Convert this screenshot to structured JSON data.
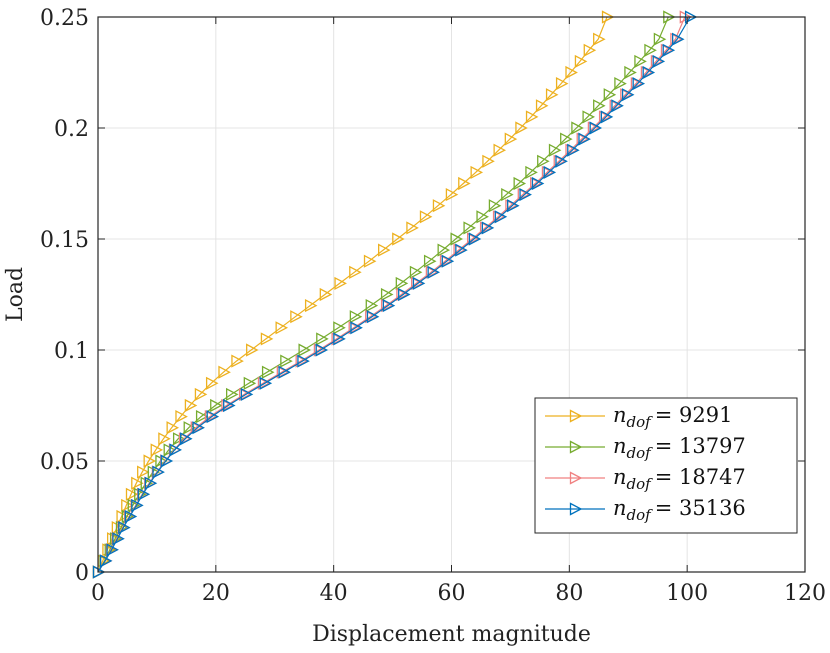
{
  "chart_data": {
    "type": "line",
    "title": "",
    "xlabel": "Displacement magnitude",
    "ylabel": "Load",
    "xlim": [
      0,
      120
    ],
    "ylim": [
      0,
      0.25
    ],
    "xticks": [
      0,
      20,
      40,
      60,
      80,
      100,
      120
    ],
    "yticks": [
      0,
      0.05,
      0.1,
      0.15,
      0.2,
      0.25
    ],
    "xtick_labels": [
      "0",
      "20",
      "40",
      "60",
      "80",
      "100",
      "120"
    ],
    "ytick_labels": [
      "0",
      "0.05",
      "0.1",
      "0.15",
      "0.2",
      "0.25"
    ],
    "grid": true,
    "legend_position": "bottom-right",
    "marker": "right-triangle",
    "series": [
      {
        "name": "n_dof = 9291",
        "legend_var": "n",
        "legend_sub": "dof",
        "legend_value": "= 9291",
        "color": "#EDB120",
        "x": [
          0,
          0.8,
          1.6,
          2.4,
          3.2,
          4.0,
          4.8,
          5.6,
          6.5,
          7.5,
          8.6,
          9.8,
          11.1,
          12.5,
          14.0,
          15.6,
          17.3,
          19.2,
          21.3,
          23.5,
          26.0,
          28.5,
          31.0,
          33.5,
          36.0,
          38.5,
          41.0,
          43.5,
          46.0,
          48.4,
          50.8,
          53.2,
          55.5,
          57.7,
          59.9,
          62.0,
          64.1,
          66.1,
          68.0,
          69.9,
          71.7,
          73.5,
          75.2,
          76.9,
          78.6,
          80.2,
          81.8,
          83.3,
          84.9,
          86.4
        ],
        "y": [
          0,
          0.005,
          0.01,
          0.015,
          0.02,
          0.025,
          0.03,
          0.035,
          0.04,
          0.045,
          0.05,
          0.055,
          0.06,
          0.065,
          0.07,
          0.075,
          0.08,
          0.085,
          0.09,
          0.095,
          0.1,
          0.105,
          0.11,
          0.115,
          0.12,
          0.125,
          0.13,
          0.135,
          0.14,
          0.145,
          0.15,
          0.155,
          0.16,
          0.165,
          0.17,
          0.175,
          0.18,
          0.185,
          0.19,
          0.195,
          0.2,
          0.205,
          0.21,
          0.215,
          0.22,
          0.225,
          0.23,
          0.235,
          0.24,
          0.25
        ]
      },
      {
        "name": "n_dof = 13797",
        "legend_var": "n",
        "legend_sub": "dof",
        "legend_value": "= 13797",
        "color": "#77AC30",
        "x": [
          0,
          1.1,
          2.0,
          2.9,
          3.9,
          4.9,
          5.9,
          7.0,
          8.1,
          9.3,
          10.6,
          12.0,
          13.6,
          15.4,
          17.5,
          19.9,
          22.6,
          25.6,
          28.7,
          31.8,
          34.9,
          37.9,
          40.8,
          43.6,
          46.3,
          48.9,
          51.4,
          53.8,
          56.2,
          58.5,
          60.7,
          62.9,
          65.1,
          67.2,
          69.3,
          71.4,
          73.4,
          75.4,
          77.4,
          79.3,
          81.2,
          83.1,
          84.9,
          86.7,
          88.5,
          90.2,
          91.9,
          93.6,
          95.2,
          96.8
        ],
        "y": [
          0,
          0.005,
          0.01,
          0.015,
          0.02,
          0.025,
          0.03,
          0.035,
          0.04,
          0.045,
          0.05,
          0.055,
          0.06,
          0.065,
          0.07,
          0.075,
          0.08,
          0.085,
          0.09,
          0.095,
          0.1,
          0.105,
          0.11,
          0.115,
          0.12,
          0.125,
          0.13,
          0.135,
          0.14,
          0.145,
          0.15,
          0.155,
          0.16,
          0.165,
          0.17,
          0.175,
          0.18,
          0.185,
          0.19,
          0.195,
          0.2,
          0.205,
          0.21,
          0.215,
          0.22,
          0.225,
          0.23,
          0.235,
          0.24,
          0.25
        ]
      },
      {
        "name": "n_dof = 18747",
        "legend_var": "n",
        "legend_sub": "dof",
        "legend_value": "= 18747",
        "color": "#F08080",
        "x": [
          0,
          1.2,
          2.2,
          3.2,
          4.2,
          5.3,
          6.4,
          7.5,
          8.7,
          10.0,
          11.4,
          12.9,
          14.6,
          16.6,
          19.0,
          21.8,
          24.8,
          28.0,
          31.2,
          34.4,
          37.5,
          40.5,
          43.4,
          46.2,
          48.9,
          51.5,
          54.0,
          56.5,
          58.9,
          61.2,
          63.5,
          65.7,
          67.9,
          70.0,
          72.1,
          74.2,
          76.2,
          78.2,
          80.2,
          82.1,
          84.0,
          85.9,
          87.7,
          89.5,
          91.3,
          93.0,
          94.7,
          96.4,
          98.0,
          99.6
        ],
        "y": [
          0,
          0.005,
          0.01,
          0.015,
          0.02,
          0.025,
          0.03,
          0.035,
          0.04,
          0.045,
          0.05,
          0.055,
          0.06,
          0.065,
          0.07,
          0.075,
          0.08,
          0.085,
          0.09,
          0.095,
          0.1,
          0.105,
          0.11,
          0.115,
          0.12,
          0.125,
          0.13,
          0.135,
          0.14,
          0.145,
          0.15,
          0.155,
          0.16,
          0.165,
          0.17,
          0.175,
          0.18,
          0.185,
          0.19,
          0.195,
          0.2,
          0.205,
          0.21,
          0.215,
          0.22,
          0.225,
          0.23,
          0.235,
          0.24,
          0.25
        ]
      },
      {
        "name": "n_dof = 35136",
        "legend_var": "n",
        "legend_sub": "dof",
        "legend_value": "= 35136",
        "color": "#0072BD",
        "x": [
          0,
          1.2,
          2.3,
          3.3,
          4.3,
          5.4,
          6.5,
          7.6,
          8.8,
          10.1,
          11.5,
          13.0,
          14.8,
          16.9,
          19.3,
          22.1,
          25.1,
          28.3,
          31.5,
          34.7,
          37.8,
          40.8,
          43.7,
          46.5,
          49.2,
          51.8,
          54.3,
          56.8,
          59.2,
          61.5,
          63.8,
          66.0,
          68.2,
          70.3,
          72.4,
          74.5,
          76.5,
          78.5,
          80.5,
          82.4,
          84.3,
          86.2,
          88.0,
          89.8,
          91.6,
          93.3,
          95.0,
          96.7,
          98.3,
          100.5
        ],
        "y": [
          0,
          0.005,
          0.01,
          0.015,
          0.02,
          0.025,
          0.03,
          0.035,
          0.04,
          0.045,
          0.05,
          0.055,
          0.06,
          0.065,
          0.07,
          0.075,
          0.08,
          0.085,
          0.09,
          0.095,
          0.1,
          0.105,
          0.11,
          0.115,
          0.12,
          0.125,
          0.13,
          0.135,
          0.14,
          0.145,
          0.15,
          0.155,
          0.16,
          0.165,
          0.17,
          0.175,
          0.18,
          0.185,
          0.19,
          0.195,
          0.2,
          0.205,
          0.21,
          0.215,
          0.22,
          0.225,
          0.23,
          0.235,
          0.24,
          0.25
        ]
      }
    ]
  }
}
